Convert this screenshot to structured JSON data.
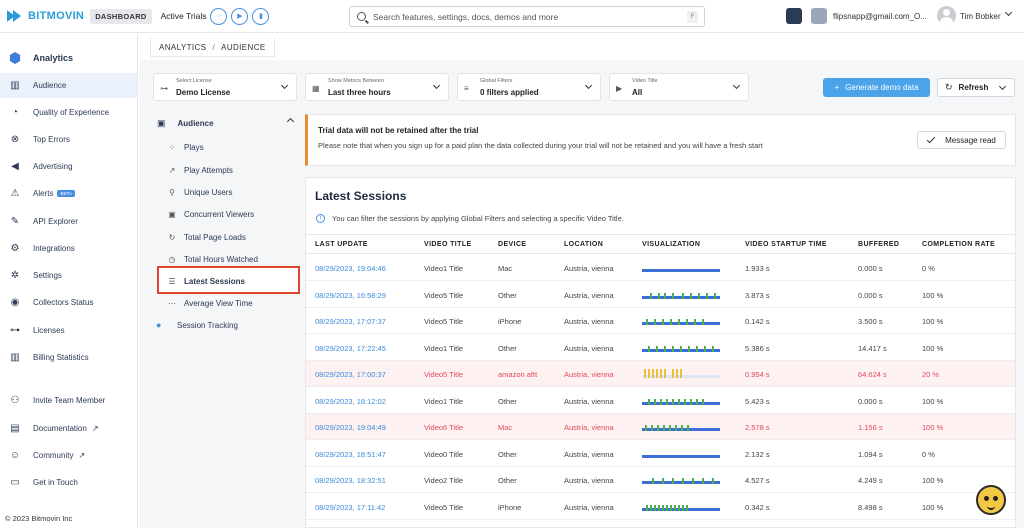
{
  "header": {
    "logo_text": "BITMOVIN",
    "dashboard_badge": "DASHBOARD",
    "active_trials": "Active Trials",
    "search_placeholder": "Search features, settings, docs, demos and more",
    "search_shortcut": "F",
    "email": "flipsnapp@gmail.com_O...",
    "username": "Tim Bobker"
  },
  "sidebar": {
    "section_title": "Analytics",
    "items": [
      {
        "label": "Audience",
        "icon": "bar-chart-icon"
      },
      {
        "label": "Quality of Experience",
        "icon": "gauge-icon"
      },
      {
        "label": "Top Errors",
        "icon": "error-icon"
      },
      {
        "label": "Advertising",
        "icon": "megaphone-icon"
      },
      {
        "label": "Alerts",
        "icon": "alert-icon",
        "badge": "BETA"
      },
      {
        "label": "API Explorer",
        "icon": "api-icon"
      },
      {
        "label": "Integrations",
        "icon": "integrations-icon"
      },
      {
        "label": "Settings",
        "icon": "gear-icon"
      },
      {
        "label": "Collectors Status",
        "icon": "signal-icon"
      },
      {
        "label": "Licenses",
        "icon": "key-icon"
      },
      {
        "label": "Billing Statistics",
        "icon": "billing-icon"
      }
    ],
    "footer_items": [
      {
        "label": "Invite Team Member",
        "icon": "add-user-icon"
      },
      {
        "label": "Documentation",
        "icon": "docs-icon"
      },
      {
        "label": "Community",
        "icon": "community-icon"
      },
      {
        "label": "Get in Touch",
        "icon": "chat-icon"
      }
    ],
    "copyright": "© 2023 Bitmovin Inc"
  },
  "breadcrumb": {
    "root": "ANALYTICS",
    "separator": "/",
    "current": "AUDIENCE"
  },
  "filters": [
    {
      "small": "Select License",
      "value": "Demo License"
    },
    {
      "small": "Show Metrics Between",
      "value": "Last three hours"
    },
    {
      "small": "Global Filters",
      "value": "0 filters applied"
    },
    {
      "small": "Video Title",
      "value": "All"
    }
  ],
  "buttons": {
    "generate_demo": "Generate demo data",
    "refresh": "Refresh",
    "message_read": "Message read"
  },
  "submenu": {
    "header": "Audience",
    "items": [
      {
        "label": "Plays"
      },
      {
        "label": "Play Attempts"
      },
      {
        "label": "Unique Users"
      },
      {
        "label": "Concurrent Viewers"
      },
      {
        "label": "Total Page Loads"
      },
      {
        "label": "Total Hours Watched"
      },
      {
        "label": "Latest Sessions"
      },
      {
        "label": "Average View Time"
      }
    ],
    "session_tracking": "Session Tracking"
  },
  "warning": {
    "title": "Trial data will not be retained after the trial",
    "text": "Please note that when you sign up for a paid plan the data collected during your trial will not be retained and you will have a fresh start"
  },
  "sessions": {
    "title": "Latest Sessions",
    "info": "You can filter the sessions by applying Global Filters and selecting a specific Video Title.",
    "columns": [
      "LAST UPDATE",
      "VIDEO TITLE",
      "DEVICE",
      "LOCATION",
      "VISUALIZATION",
      "VIDEO STARTUP TIME",
      "BUFFERED",
      "COMPLETION RATE"
    ],
    "rows": [
      {
        "update": "08/29/2023, 19:04:46",
        "title": "Video1 Title",
        "device": "Mac",
        "location": "Austria, vienna",
        "startup": "1.933 s",
        "buffered": "0.000 s",
        "completion": "0 %",
        "error": false
      },
      {
        "update": "08/29/2023, 16:58:29",
        "title": "Video5 Title",
        "device": "Other",
        "location": "Austria, vienna",
        "startup": "3.873 s",
        "buffered": "0.000 s",
        "completion": "100 %",
        "error": false
      },
      {
        "update": "08/29/2023, 17:07:37",
        "title": "Video5 Title",
        "device": "iPhone",
        "location": "Austria, vienna",
        "startup": "0.142 s",
        "buffered": "3.500 s",
        "completion": "100 %",
        "error": false
      },
      {
        "update": "08/29/2023, 17:22:45",
        "title": "Video1 Title",
        "device": "Other",
        "location": "Austria, vienna",
        "startup": "5.386 s",
        "buffered": "14.417 s",
        "completion": "100 %",
        "error": false
      },
      {
        "update": "08/29/2023, 17:00:37",
        "title": "Video5 Title",
        "device": "amazon aftt",
        "location": "Austria, vienna",
        "startup": "0.954 s",
        "buffered": "64.624 s",
        "completion": "20 %",
        "error": true
      },
      {
        "update": "08/29/2023, 18:12:02",
        "title": "Video1 Title",
        "device": "Other",
        "location": "Austria, vienna",
        "startup": "5.423 s",
        "buffered": "0.000 s",
        "completion": "100 %",
        "error": false
      },
      {
        "update": "08/29/2023, 19:04:49",
        "title": "Video6 Title",
        "device": "Mac",
        "location": "Austria, vienna",
        "startup": "2.578 s",
        "buffered": "1.156 s",
        "completion": "100 %",
        "error": true
      },
      {
        "update": "08/29/2023, 18:51:47",
        "title": "Video0 Title",
        "device": "Other",
        "location": "Austria, vienna",
        "startup": "2.132 s",
        "buffered": "1.094 s",
        "completion": "0 %",
        "error": false
      },
      {
        "update": "08/29/2023, 18:32:51",
        "title": "Video2 Title",
        "device": "Other",
        "location": "Austria, vienna",
        "startup": "4.527 s",
        "buffered": "4.249 s",
        "completion": "100 %",
        "error": false
      },
      {
        "update": "08/29/2023, 17:11:42",
        "title": "Video5 Title",
        "device": "iPhone",
        "location": "Austria, vienna",
        "startup": "0.342 s",
        "buffered": "8.498 s",
        "completion": "100 %",
        "error": false
      }
    ]
  },
  "colors": {
    "accent": "#4ba3e9",
    "link": "#3b8bd9",
    "error_text": "#e14a5a",
    "error_bg": "#fdf1f2",
    "warning_border": "#e98c38",
    "highlight_box": "#e0432e"
  }
}
